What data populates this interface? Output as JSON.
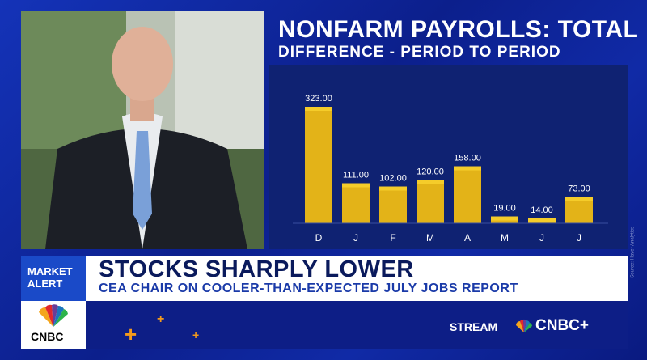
{
  "chart_data": {
    "type": "bar",
    "title": "NONFARM PAYROLLS: TOTAL",
    "subtitle": "DIFFERENCE - PERIOD TO PERIOD",
    "categories": [
      "D",
      "J",
      "F",
      "M",
      "A",
      "M",
      "J",
      "J"
    ],
    "values": [
      323.0,
      111.0,
      102.0,
      120.0,
      158.0,
      19.0,
      14.0,
      73.0
    ],
    "value_labels": [
      "323.00",
      "111.00",
      "102.00",
      "120.00",
      "158.00",
      "19.00",
      "14.00",
      "73.00"
    ],
    "ylim": [
      0,
      350
    ],
    "grid": false,
    "bar_color": "#e3b318",
    "bar_top_color": "#f5cc2a",
    "source": "Source: Haver Analytics"
  },
  "lower_third": {
    "badge": "MARKET ALERT",
    "headline": "STOCKS SHARPLY LOWER",
    "subhead": "CEA CHAIR ON COOLER-THAN-EXPECTED JULY JOBS REPORT"
  },
  "branding": {
    "logo": "CNBC",
    "stream": "STREAM",
    "cnbc_plus": "CNBC+"
  },
  "colors": {
    "background": "#0c1f8c",
    "badge": "#1a4ac8",
    "headline": "#0a1a5c",
    "accent": "#f39a1c"
  }
}
